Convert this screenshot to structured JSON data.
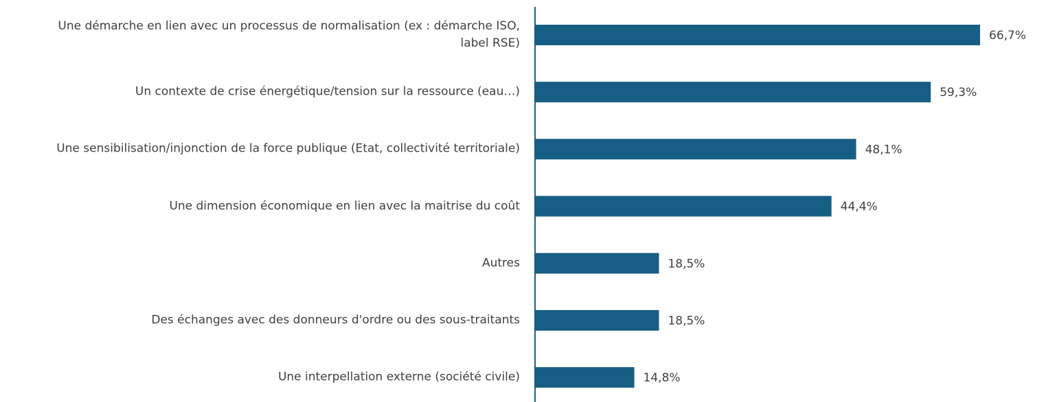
{
  "chart_data": {
    "type": "bar",
    "orientation": "horizontal",
    "categories": [
      "Une démarche en lien avec un processus de normalisation (ex : démarche ISO,\nlabel RSE)",
      "Un contexte de crise énergétique/tension sur la ressource (eau…)",
      "Une sensibilisation/injonction de la force publique (Etat, collectivité territoriale)",
      "Une dimension économique en lien avec la maitrise du coût",
      "Autres",
      "Des échanges avec des donneurs d'ordre ou des sous-traitants",
      "Une interpellation externe (société civile)"
    ],
    "values": [
      66.7,
      59.3,
      48.1,
      44.4,
      18.5,
      18.5,
      14.8
    ],
    "value_labels": [
      "66,7%",
      "59,3%",
      "48,1%",
      "44,4%",
      "18,5%",
      "18,5%",
      "14,8%"
    ],
    "color": "#175e84"
  }
}
